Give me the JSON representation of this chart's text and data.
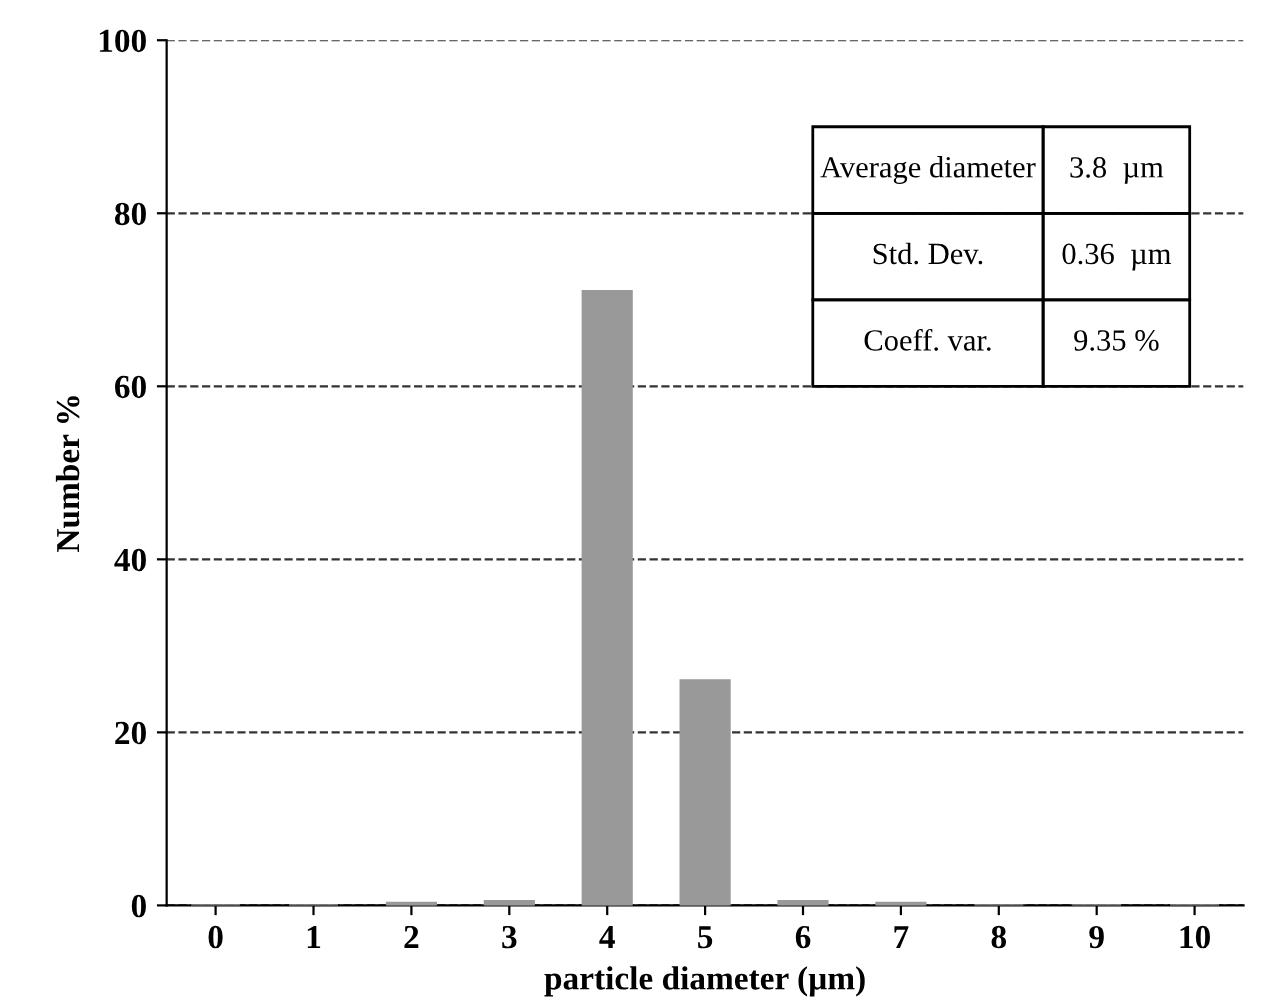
{
  "chart_data": {
    "type": "bar",
    "xlabel": "particle diameter (µm)",
    "ylabel": "Number %",
    "categories": [
      "0",
      "1",
      "2",
      "3",
      "4",
      "5",
      "6",
      "7",
      "8",
      "9",
      "10"
    ],
    "values": [
      0,
      0,
      0.3,
      0.5,
      71,
      26,
      0.5,
      0.3,
      0,
      0,
      0
    ],
    "color": "#999999",
    "ylim": [
      0,
      100
    ],
    "yticks": [
      0,
      20,
      40,
      60,
      80,
      100
    ],
    "grid": "y",
    "annotations": [
      "Average diameter",
      "3.8  µm",
      "Std. Dev.",
      "0.36  µm",
      "Coeff. var.",
      "9.35 %"
    ]
  }
}
